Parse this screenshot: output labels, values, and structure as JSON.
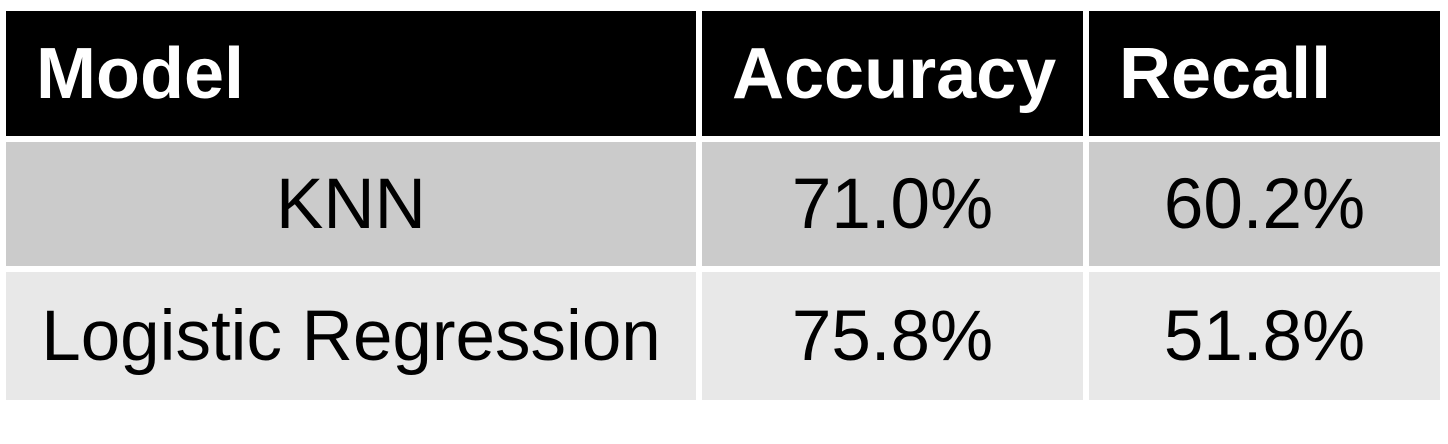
{
  "chart_data": {
    "type": "table",
    "columns": [
      "Model",
      "Accuracy",
      "Recall"
    ],
    "rows": [
      [
        "KNN",
        "71.0%",
        "60.2%"
      ],
      [
        "Logistic Regression",
        "75.8%",
        "51.8%"
      ]
    ]
  },
  "colors": {
    "header_bg": "#000000",
    "header_text": "#ffffff",
    "row_1_bg": "#cbcbcb",
    "row_2_bg": "#e8e8e8",
    "body_text": "#000000"
  }
}
